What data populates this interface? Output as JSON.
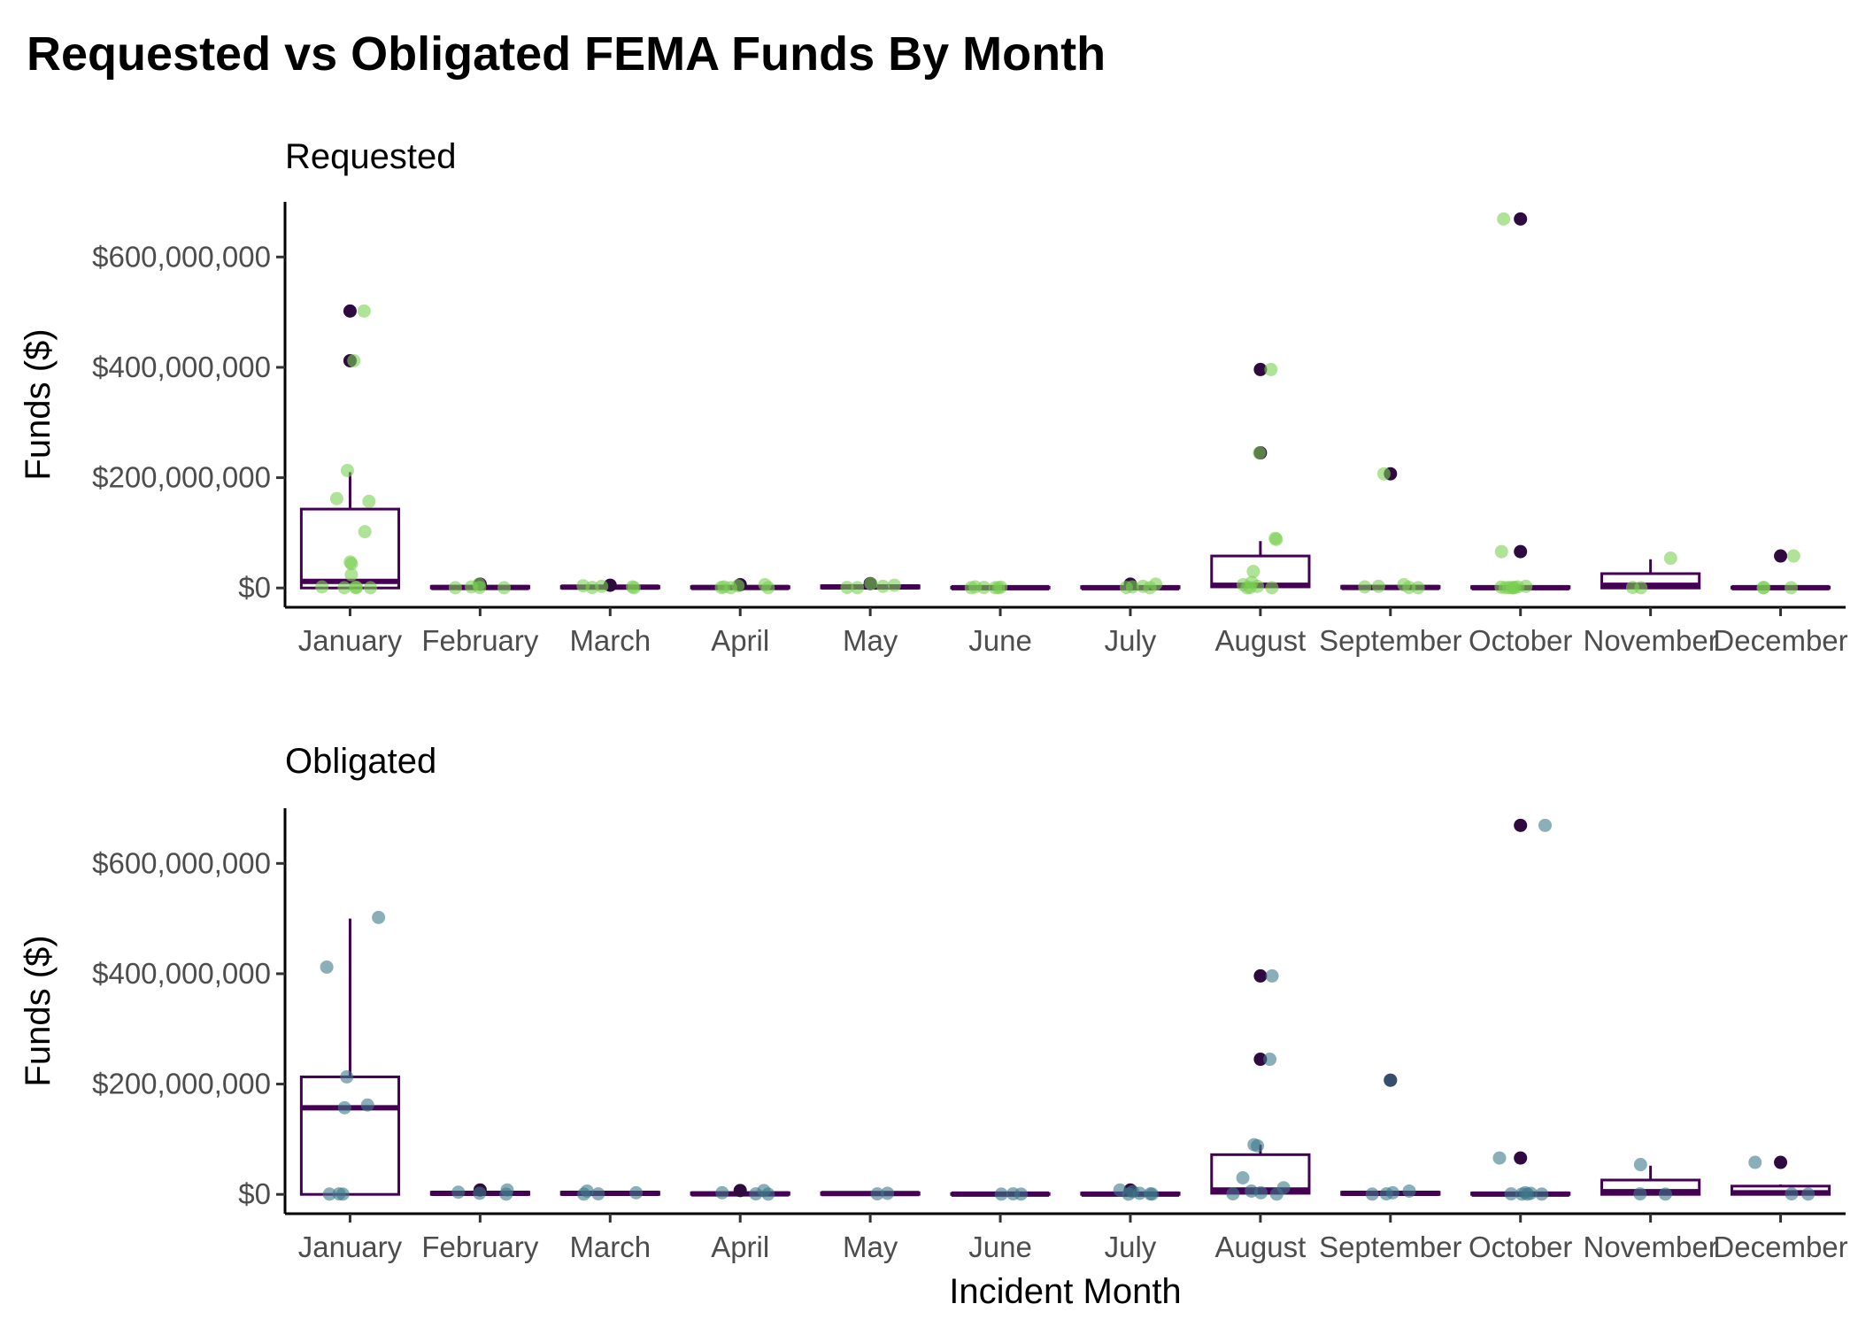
{
  "title": "Requested vs Obligated FEMA Funds By Month",
  "chart_data": {
    "type": "box",
    "title": "Requested vs Obligated FEMA Funds By Month",
    "xlabel": "Incident Month",
    "categories": [
      "January",
      "February",
      "March",
      "April",
      "May",
      "June",
      "July",
      "August",
      "September",
      "October",
      "November",
      "December"
    ],
    "ylim": [
      -35000000,
      700000000
    ],
    "y_ticks": [
      0,
      200000000,
      400000000,
      600000000
    ],
    "y_tick_labels": [
      "$0",
      "$200,000,000",
      "$400,000,000",
      "$600,000,000"
    ],
    "colors": {
      "box": "#440154",
      "outlier": "#2e0a41",
      "requested_points": "#7ad151",
      "obligated_points": "#3d7a8a"
    },
    "legend": "none",
    "grid": false,
    "panels": [
      {
        "name": "Requested",
        "ylabel": "Funds ($)",
        "boxes": [
          {
            "category": "January",
            "q1": 0,
            "median": 12000000,
            "q3": 143000000,
            "whisker_low": 0,
            "whisker_high": 210000000
          },
          {
            "category": "February",
            "q1": 0,
            "median": 1000000,
            "q3": 3000000,
            "whisker_low": 0,
            "whisker_high": 5000000
          },
          {
            "category": "March",
            "q1": 0,
            "median": 1500000,
            "q3": 3000000,
            "whisker_low": 0,
            "whisker_high": 5000000
          },
          {
            "category": "April",
            "q1": 0,
            "median": 1000000,
            "q3": 2500000,
            "whisker_low": 0,
            "whisker_high": 4000000
          },
          {
            "category": "May",
            "q1": 0,
            "median": 2000000,
            "q3": 4000000,
            "whisker_low": 0,
            "whisker_high": 6000000
          },
          {
            "category": "June",
            "q1": 0,
            "median": 500000,
            "q3": 1500000,
            "whisker_low": 0,
            "whisker_high": 2500000
          },
          {
            "category": "July",
            "q1": 0,
            "median": 500000,
            "q3": 2500000,
            "whisker_low": 0,
            "whisker_high": 4000000
          },
          {
            "category": "August",
            "q1": 2000000,
            "median": 5000000,
            "q3": 58000000,
            "whisker_low": 0,
            "whisker_high": 85000000
          },
          {
            "category": "September",
            "q1": 0,
            "median": 1000000,
            "q3": 3000000,
            "whisker_low": 0,
            "whisker_high": 5000000
          },
          {
            "category": "October",
            "q1": 0,
            "median": 500000,
            "q3": 2500000,
            "whisker_low": 0,
            "whisker_high": 5000000
          },
          {
            "category": "November",
            "q1": 0,
            "median": 5000000,
            "q3": 26000000,
            "whisker_low": 0,
            "whisker_high": 52000000
          },
          {
            "category": "December",
            "q1": 0,
            "median": 500000,
            "q3": 1500000,
            "whisker_low": 0,
            "whisker_high": 2500000
          }
        ],
        "outliers": [
          {
            "category": "January",
            "values": [
              502000000,
              412000000
            ]
          },
          {
            "category": "February",
            "values": [
              7000000
            ]
          },
          {
            "category": "March",
            "values": [
              5000000
            ]
          },
          {
            "category": "April",
            "values": [
              6000000
            ]
          },
          {
            "category": "May",
            "values": [
              8000000
            ]
          },
          {
            "category": "July",
            "values": [
              7000000
            ]
          },
          {
            "category": "August",
            "values": [
              396000000,
              245000000
            ]
          },
          {
            "category": "September",
            "values": [
              207000000
            ]
          },
          {
            "category": "October",
            "values": [
              669000000,
              66000000
            ]
          },
          {
            "category": "December",
            "values": [
              58000000
            ]
          }
        ],
        "points": [
          {
            "category": "January",
            "values": [
              502000000,
              412000000,
              213000000,
              162000000,
              157000000,
              102000000,
              47000000,
              44000000,
              24000000,
              2000000,
              1000000,
              1000000,
              500000,
              500000
            ]
          },
          {
            "category": "February",
            "values": [
              7000000,
              2000000,
              1000000,
              500000,
              500000
            ]
          },
          {
            "category": "March",
            "values": [
              4000000,
              3000000,
              2000000,
              1000000,
              500000
            ]
          },
          {
            "category": "April",
            "values": [
              6000000,
              4000000,
              2000000,
              1000000,
              500000,
              500000
            ]
          },
          {
            "category": "May",
            "values": [
              8000000,
              5000000,
              3000000,
              1000000,
              500000
            ]
          },
          {
            "category": "June",
            "values": [
              2000000,
              1500000,
              1000000,
              500000,
              500000,
              500000
            ]
          },
          {
            "category": "July",
            "values": [
              7000000,
              3000000,
              2000000,
              1000000,
              500000
            ]
          },
          {
            "category": "August",
            "values": [
              396000000,
              245000000,
              90000000,
              88000000,
              30000000,
              10000000,
              6000000,
              3000000,
              1000000,
              500000,
              500000
            ]
          },
          {
            "category": "September",
            "values": [
              207000000,
              6000000,
              3000000,
              2000000,
              1000000,
              500000
            ]
          },
          {
            "category": "October",
            "values": [
              669000000,
              66000000,
              3000000,
              2000000,
              1500000,
              1000000,
              1000000,
              500000,
              500000,
              500000
            ]
          },
          {
            "category": "November",
            "values": [
              54000000,
              1000000,
              500000
            ]
          },
          {
            "category": "December",
            "values": [
              58000000,
              1000000,
              500000,
              500000
            ]
          }
        ]
      },
      {
        "name": "Obligated",
        "ylabel": "Funds ($)",
        "boxes": [
          {
            "category": "January",
            "q1": 0,
            "median": 157000000,
            "q3": 213000000,
            "whisker_low": 0,
            "whisker_high": 500000000
          },
          {
            "category": "February",
            "q1": 0,
            "median": 2000000,
            "q3": 4000000,
            "whisker_low": 0,
            "whisker_high": 6000000
          },
          {
            "category": "March",
            "q1": 0,
            "median": 2000000,
            "q3": 4000000,
            "whisker_low": 0,
            "whisker_high": 6000000
          },
          {
            "category": "April",
            "q1": 0,
            "median": 1000000,
            "q3": 3000000,
            "whisker_low": 0,
            "whisker_high": 5000000
          },
          {
            "category": "May",
            "q1": 0,
            "median": 1500000,
            "q3": 3000000,
            "whisker_low": 0,
            "whisker_high": 4000000
          },
          {
            "category": "June",
            "q1": 0,
            "median": 500000,
            "q3": 1500000,
            "whisker_low": 0,
            "whisker_high": 2500000
          },
          {
            "category": "July",
            "q1": 0,
            "median": 500000,
            "q3": 2500000,
            "whisker_low": 0,
            "whisker_high": 4000000
          },
          {
            "category": "August",
            "q1": 2000000,
            "median": 8000000,
            "q3": 72000000,
            "whisker_low": 0,
            "whisker_high": 90000000
          },
          {
            "category": "September",
            "q1": 0,
            "median": 2000000,
            "q3": 4000000,
            "whisker_low": 0,
            "whisker_high": 6000000
          },
          {
            "category": "October",
            "q1": 0,
            "median": 500000,
            "q3": 2500000,
            "whisker_low": 0,
            "whisker_high": 5000000
          },
          {
            "category": "November",
            "q1": 0,
            "median": 5000000,
            "q3": 26000000,
            "whisker_low": 0,
            "whisker_high": 52000000
          },
          {
            "category": "December",
            "q1": 0,
            "median": 3000000,
            "q3": 15000000,
            "whisker_low": 0,
            "whisker_high": 18000000
          }
        ],
        "outliers": [
          {
            "category": "February",
            "values": [
              8000000
            ]
          },
          {
            "category": "April",
            "values": [
              7000000
            ]
          },
          {
            "category": "July",
            "values": [
              8000000
            ]
          },
          {
            "category": "August",
            "values": [
              396000000,
              245000000
            ]
          },
          {
            "category": "September",
            "values": [
              207000000
            ]
          },
          {
            "category": "October",
            "values": [
              669000000,
              66000000
            ]
          },
          {
            "category": "December",
            "values": [
              58000000
            ]
          }
        ],
        "points": [
          {
            "category": "January",
            "values": [
              502000000,
              412000000,
              213000000,
              162000000,
              157000000,
              1000000,
              500000,
              500000
            ]
          },
          {
            "category": "February",
            "values": [
              8000000,
              4000000,
              2000000,
              500000
            ]
          },
          {
            "category": "March",
            "values": [
              6000000,
              3000000,
              1000000,
              500000
            ]
          },
          {
            "category": "April",
            "values": [
              7000000,
              3000000,
              1000000,
              500000
            ]
          },
          {
            "category": "May",
            "values": [
              2000000,
              1000000
            ]
          },
          {
            "category": "June",
            "values": [
              1000000,
              500000,
              500000
            ]
          },
          {
            "category": "July",
            "values": [
              8000000,
              5000000,
              2000000,
              1000000,
              500000,
              500000
            ]
          },
          {
            "category": "August",
            "values": [
              396000000,
              245000000,
              90000000,
              88000000,
              30000000,
              12000000,
              6000000,
              3000000,
              1000000,
              500000
            ]
          },
          {
            "category": "September",
            "values": [
              207000000,
              6000000,
              3000000,
              1000000,
              500000
            ]
          },
          {
            "category": "October",
            "values": [
              669000000,
              66000000,
              3000000,
              2000000,
              1000000,
              500000,
              500000,
              500000
            ]
          },
          {
            "category": "November",
            "values": [
              54000000,
              1000000,
              500000
            ]
          },
          {
            "category": "December",
            "values": [
              58000000,
              1000000,
              500000
            ]
          }
        ]
      }
    ]
  }
}
